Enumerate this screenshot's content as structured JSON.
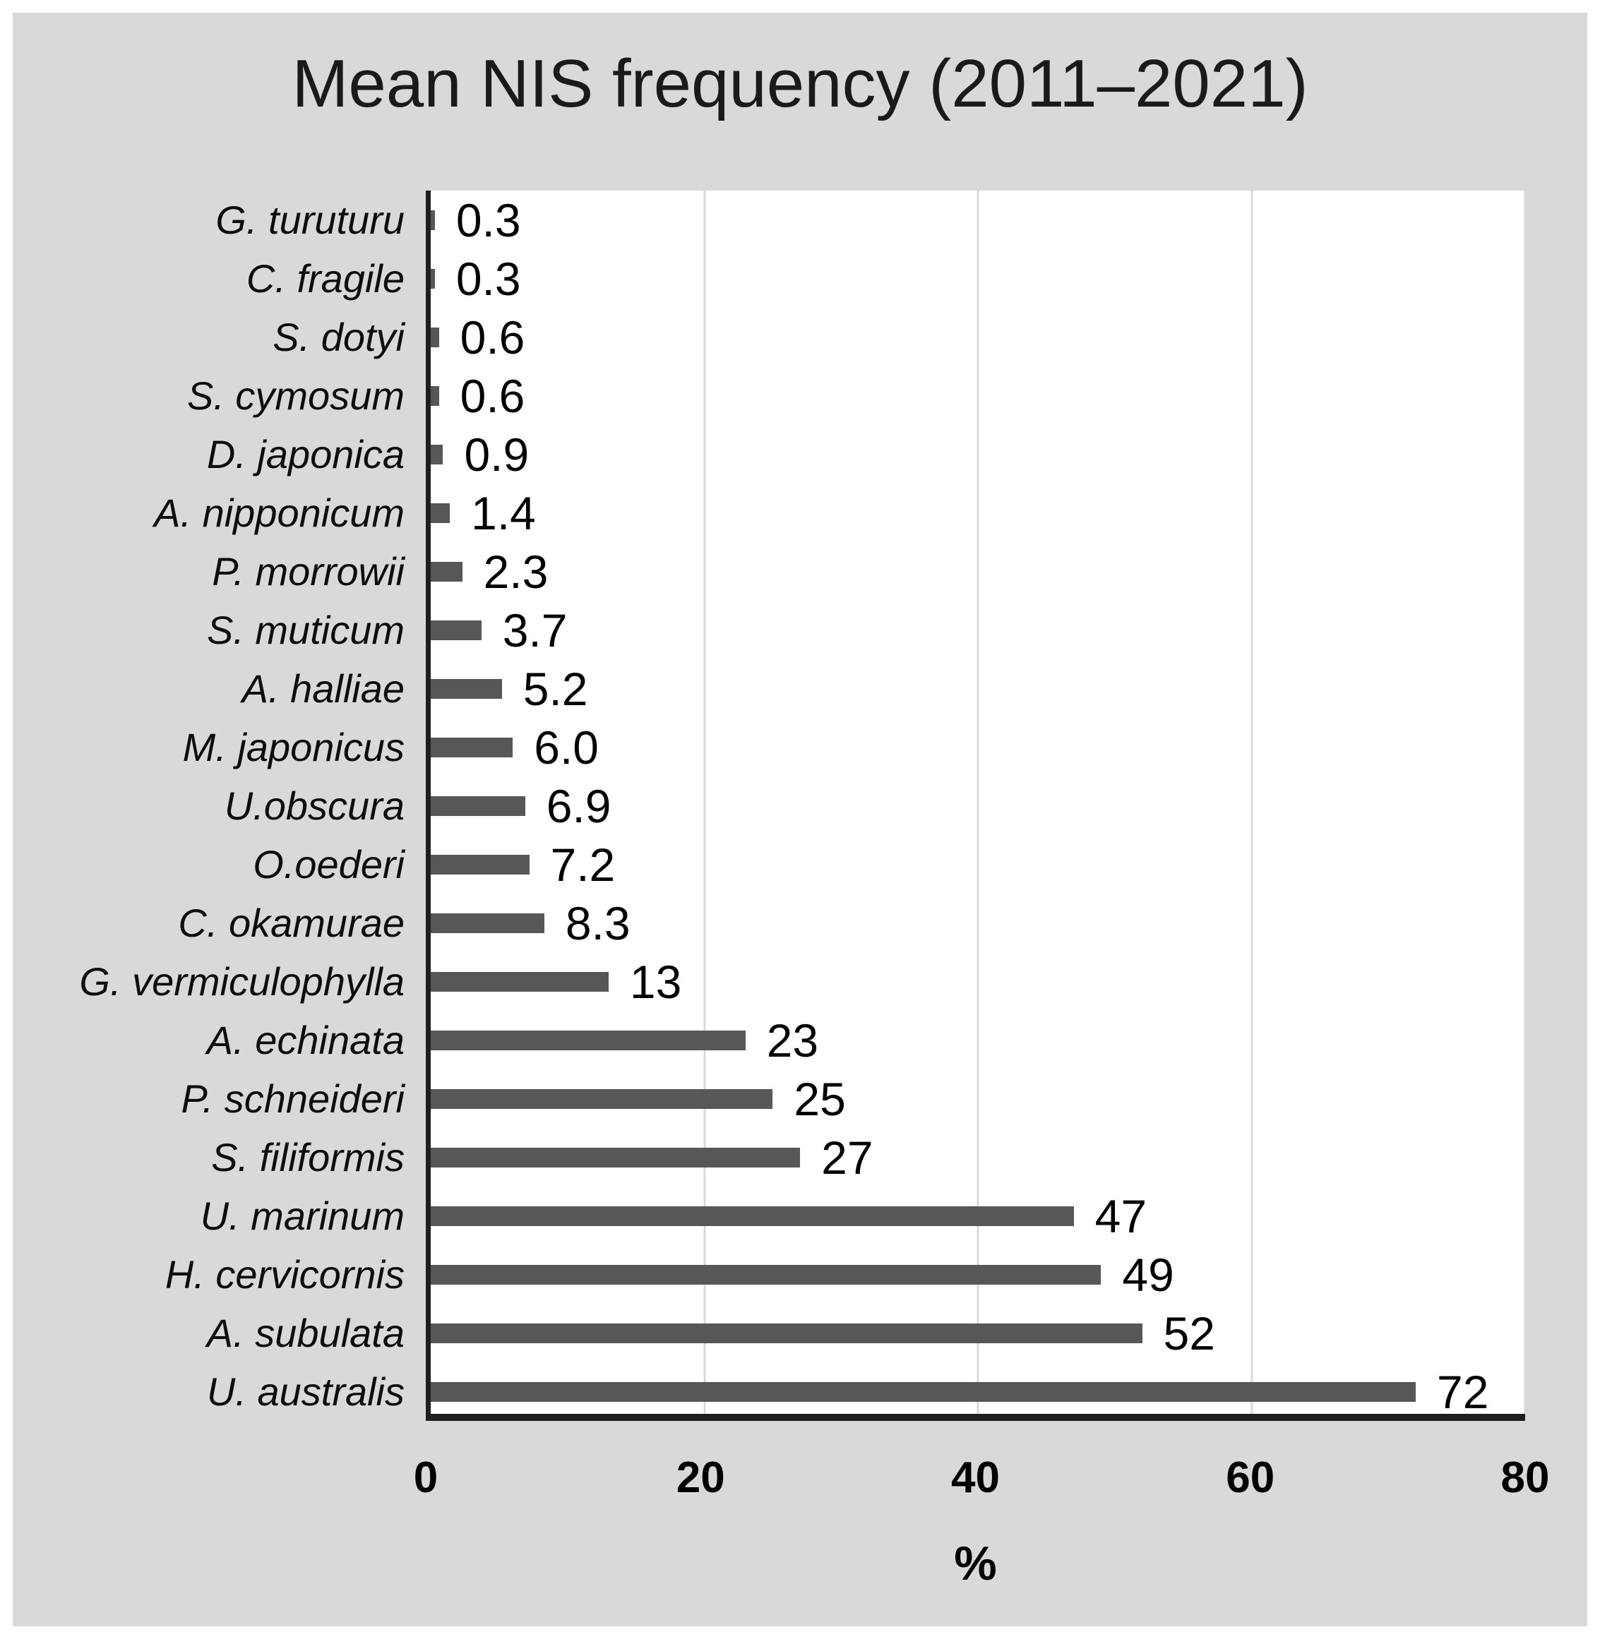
{
  "chart_data": {
    "type": "bar",
    "orientation": "horizontal",
    "title": "Mean NIS frequency (2011–2021)",
    "xlabel": "%",
    "categories": [
      "G. turuturu",
      "C. fragile",
      "S. dotyi",
      "S. cymosum",
      "D. japonica",
      "A. nipponicum",
      "P. morrowii",
      "S. muticum",
      "A. halliae",
      "M. japonicus",
      "U.obscura",
      "O.oederi",
      "C. okamurae",
      "G. vermiculophylla",
      "A. echinata",
      "P. schneideri",
      "S. filiformis",
      "U. marinum",
      "H. cervicornis",
      "A. subulata",
      "U. australis"
    ],
    "values": [
      0.3,
      0.3,
      0.6,
      0.6,
      0.9,
      1.4,
      2.3,
      3.7,
      5.2,
      6.0,
      6.9,
      7.2,
      8.3,
      13,
      23,
      25,
      27,
      47,
      49,
      52,
      72
    ],
    "value_labels": [
      "0.3",
      "0.3",
      "0.6",
      "0.6",
      "0.9",
      "1.4",
      "2.3",
      "3.7",
      "5.2",
      "6.0",
      "6.9",
      "7.2",
      "8.3",
      "13",
      "23",
      "25",
      "27",
      "47",
      "49",
      "52",
      "72"
    ],
    "xlim": [
      0,
      80
    ],
    "xticks": [
      0,
      20,
      40,
      60,
      80
    ],
    "grid": true,
    "legend_position": "none",
    "colors": {
      "bar": "#575757",
      "panel_bg": "#d9d9d9",
      "plot_bg": "#ffffff",
      "axis": "#1f1f1f",
      "gridline": "#d9d9d9",
      "text": "#000000"
    }
  }
}
